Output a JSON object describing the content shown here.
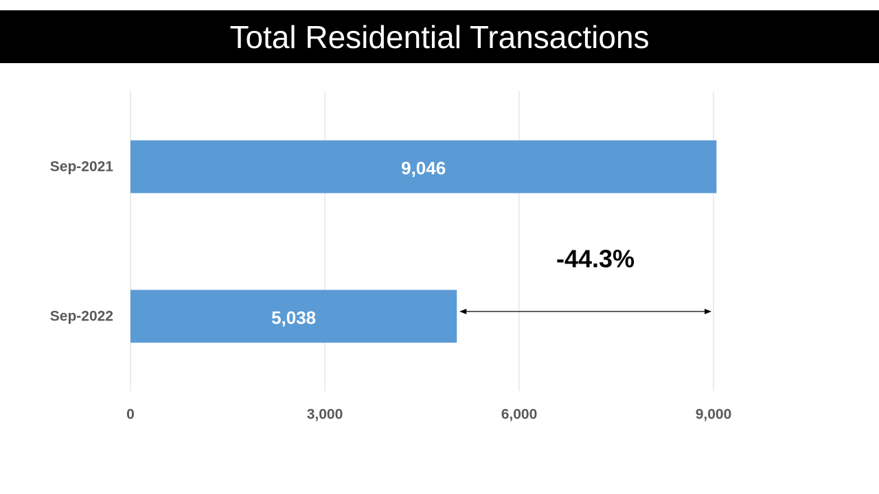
{
  "title": "Total Residential Transactions",
  "colors": {
    "title_background": "#000000",
    "title_text": "#ffffff",
    "bar": "#5b9bd5",
    "gridline": "#d9d9d9",
    "axis_text": "#595959",
    "data_label": "#ffffff",
    "annotation": "#000000"
  },
  "chart_data": {
    "type": "bar",
    "orientation": "horizontal",
    "title": "Total Residential Transactions",
    "categories": [
      "Sep-2021",
      "Sep-2022"
    ],
    "values": [
      9046,
      5038
    ],
    "data_labels": [
      "9,046",
      "5,038"
    ],
    "xlim": [
      0,
      9000
    ],
    "x_ticks": [
      0,
      3000,
      6000,
      9000
    ],
    "x_tick_labels": [
      "0",
      "3,000",
      "6,000",
      "9,000"
    ],
    "grid": "vertical",
    "legend": "none",
    "annotations": [
      {
        "text": "-44.3%",
        "type": "double-arrow",
        "from_value": 5038,
        "to_value": 9046
      }
    ]
  }
}
